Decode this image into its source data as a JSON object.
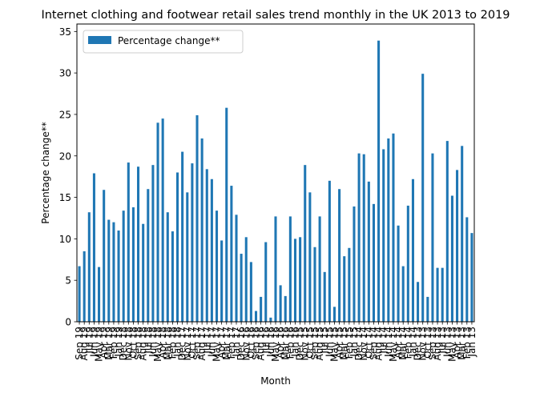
{
  "chart_data": {
    "type": "bar",
    "title": "Internet clothing and footwear retail sales trend monthly in the UK 2013 to 2019",
    "xlabel": "Month",
    "ylabel": "Percentage change**",
    "ylim": [
      0,
      35.9
    ],
    "yticks": [
      0,
      5,
      10,
      15,
      20,
      25,
      30,
      35
    ],
    "grid": false,
    "legend_position": "top-left",
    "bar_color": "#1f77b4",
    "series": [
      {
        "name": "Percentage change**"
      }
    ],
    "categories": [
      "Sep 19",
      "Aug 19",
      "Jul 19",
      "Jun 19",
      "May 19",
      "Apr 19",
      "Mar 19",
      "Feb 19",
      "Jan 19",
      "Dec 18",
      "Nov 18",
      "Oct 18",
      "Sep 18",
      "Aug 18",
      "Jul 18",
      "Jun 18",
      "May 18",
      "Apr 18",
      "Mar 18",
      "Feb 18",
      "Jan 18",
      "Dec 17",
      "Nov 17",
      "Oct 17",
      "Sep 17",
      "Aug 17",
      "Jul 17",
      "Jun 17",
      "May 17",
      "Apr 17",
      "Mar 17",
      "Feb 17",
      "Jan 17",
      "Dec 16",
      "Nov 16",
      "Oct 16",
      "Sep 16",
      "Aug 16",
      "Jul 16",
      "Jun 16",
      "May 16",
      "Apr 16",
      "Mar 16",
      "Feb 16",
      "Jan 16",
      "Dec 15",
      "Nov 15",
      "Oct 15",
      "Sep 15",
      "Aug 15",
      "Jul 15",
      "Jun 15",
      "May 15",
      "Apr 15",
      "Mar 15",
      "Feb 15",
      "Jan 15",
      "Dec 14",
      "Nov 14",
      "Oct 14",
      "Sep 14",
      "Aug 14",
      "Jul 14",
      "Jun 14",
      "May 14",
      "Apr 14",
      "Mar 14",
      "Feb 14",
      "Jan 14",
      "Dec 13",
      "Nov 13",
      "Oct 13",
      "Sep 13",
      "Aug 13",
      "Jul 13",
      "Jun 13",
      "May 13",
      "Apr 13",
      "Mar 13",
      "Feb 13",
      "Jan 13"
    ],
    "values": [
      6.7,
      8.5,
      13.2,
      17.9,
      6.6,
      15.9,
      12.3,
      12.0,
      11.0,
      13.4,
      19.2,
      13.8,
      18.7,
      11.8,
      16.0,
      18.9,
      24.0,
      24.5,
      13.2,
      10.9,
      18.0,
      20.5,
      15.6,
      19.1,
      24.9,
      22.1,
      18.4,
      17.2,
      13.4,
      9.8,
      25.8,
      16.4,
      12.9,
      8.2,
      10.2,
      7.2,
      1.3,
      3.0,
      9.6,
      0.5,
      12.7,
      4.4,
      3.1,
      12.7,
      10.0,
      10.2,
      18.9,
      15.6,
      9.0,
      12.7,
      6.0,
      17.0,
      1.8,
      16.0,
      7.9,
      8.9,
      13.9,
      20.3,
      20.2,
      16.9,
      14.2,
      33.9,
      20.8,
      22.1,
      22.7,
      11.6,
      6.7,
      14.0,
      17.2,
      4.8,
      29.9,
      3.0,
      20.3,
      6.5,
      6.5,
      21.8,
      15.2,
      18.3,
      21.2,
      12.6,
      10.7
    ]
  }
}
